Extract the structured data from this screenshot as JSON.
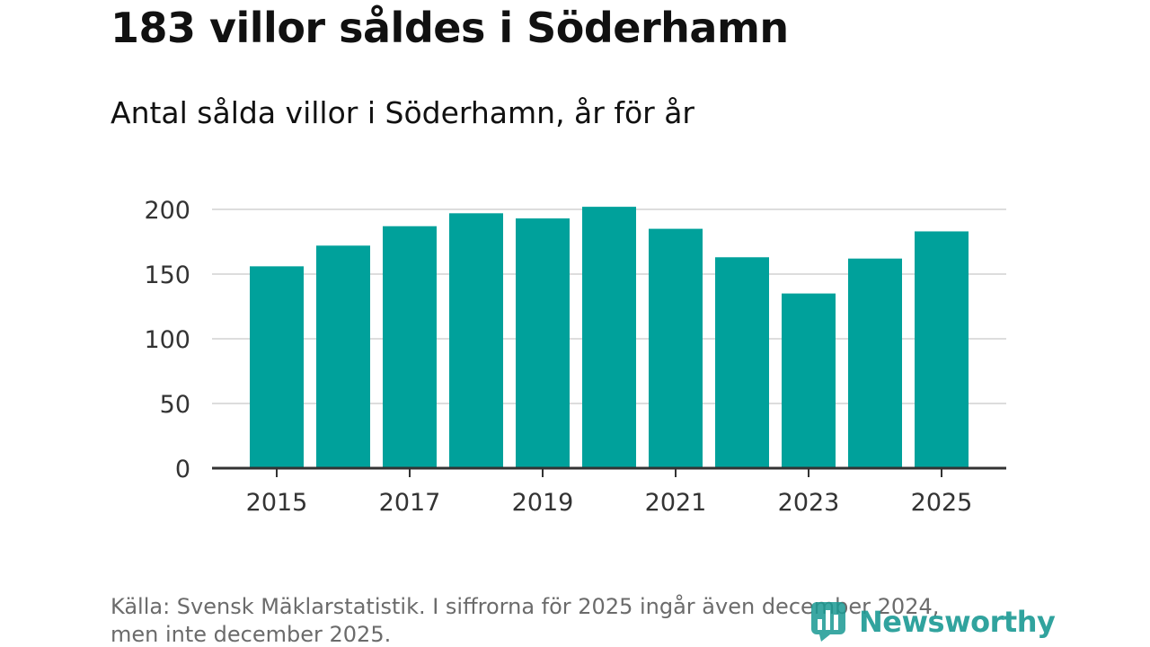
{
  "header": {
    "title": "183 villor såldes i Söderhamn",
    "subtitle": "Antal sålda villor i Söderhamn, år för år"
  },
  "footer": {
    "source_line1": "Källa: Svensk Mäklarstatistik. I siffrorna för 2025 ingår även december 2024,",
    "source_line2": "men inte december 2025.",
    "logo_text": "Newsworthy"
  },
  "colors": {
    "bar": "#00a19b",
    "grid": "#dddddd",
    "axis": "#333333",
    "logo": "#1b9a94"
  },
  "chart_data": {
    "type": "bar",
    "title": "Antal sålda villor i Söderhamn, år för år",
    "xlabel": "",
    "ylabel": "",
    "categories": [
      "2015",
      "2016",
      "2017",
      "2018",
      "2019",
      "2020",
      "2021",
      "2022",
      "2023",
      "2024",
      "2025"
    ],
    "values": [
      156,
      172,
      187,
      197,
      193,
      202,
      185,
      163,
      135,
      162,
      183
    ],
    "ylim": [
      0,
      200
    ],
    "yticks": [
      0,
      50,
      100,
      150,
      200
    ],
    "xticks": [
      "2015",
      "2017",
      "2019",
      "2021",
      "2023",
      "2025"
    ],
    "grid": true
  }
}
